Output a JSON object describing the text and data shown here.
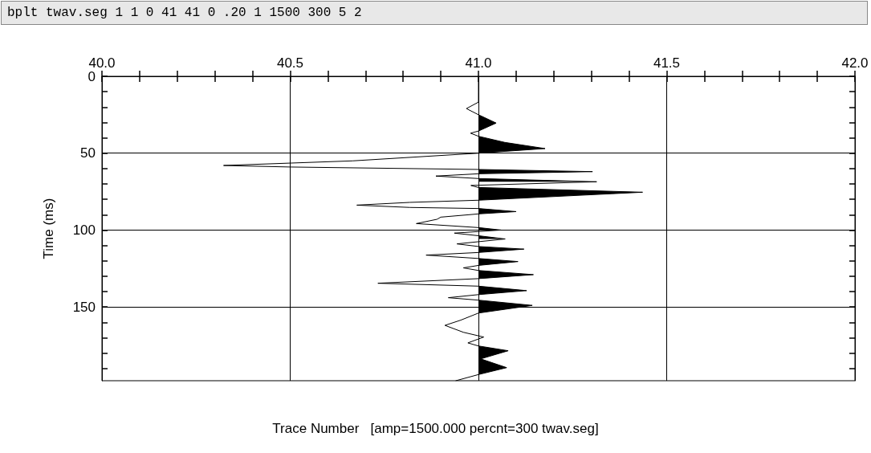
{
  "chart_data": {
    "type": "line",
    "title": "bplt twav.seg 1 1 0 41 41 0 .20 1 1500 300 5 2",
    "xlabel": "Trace Number   [amp=1500.000 percnt=300 twav.seg]",
    "ylabel": "Time (ms)",
    "xlim": [
      40.0,
      42.0
    ],
    "ylim": [
      198,
      0
    ],
    "xticks": [
      {
        "value": 40.0,
        "label": "40.0"
      },
      {
        "value": 40.1,
        "label": null
      },
      {
        "value": 40.2,
        "label": null
      },
      {
        "value": 40.3,
        "label": null
      },
      {
        "value": 40.4,
        "label": null
      },
      {
        "value": 40.5,
        "label": "40.5"
      },
      {
        "value": 40.6,
        "label": null
      },
      {
        "value": 40.7,
        "label": null
      },
      {
        "value": 40.8,
        "label": null
      },
      {
        "value": 40.9,
        "label": null
      },
      {
        "value": 41.0,
        "label": "41.0"
      },
      {
        "value": 41.1,
        "label": null
      },
      {
        "value": 41.2,
        "label": null
      },
      {
        "value": 41.3,
        "label": null
      },
      {
        "value": 41.4,
        "label": null
      },
      {
        "value": 41.5,
        "label": "41.5"
      },
      {
        "value": 41.6,
        "label": null
      },
      {
        "value": 41.7,
        "label": null
      },
      {
        "value": 41.8,
        "label": null
      },
      {
        "value": 41.9,
        "label": null
      },
      {
        "value": 42.0,
        "label": "42.0"
      }
    ],
    "yticks": [
      0,
      {
        "value": 10,
        "label": null
      },
      {
        "value": 20,
        "label": null
      },
      {
        "value": 30,
        "label": null
      },
      {
        "value": 40,
        "label": null
      },
      50,
      {
        "value": 60,
        "label": null
      },
      {
        "value": 70,
        "label": null
      },
      {
        "value": 80,
        "label": null
      },
      {
        "value": 90,
        "label": null
      },
      100,
      {
        "value": 110,
        "label": null
      },
      {
        "value": 120,
        "label": null
      },
      {
        "value": 130,
        "label": null
      },
      {
        "value": 140,
        "label": null
      },
      150,
      {
        "value": 160,
        "label": null
      },
      {
        "value": 170,
        "label": null
      },
      {
        "value": 180,
        "label": null
      },
      {
        "value": 190,
        "label": null
      }
    ],
    "grid": true,
    "marker": "none",
    "line_style": "solid",
    "orientation": "horizontal",
    "x": [
      0,
      10,
      16.8,
      21,
      25,
      30.4,
      35.6,
      37,
      39,
      43,
      47,
      50,
      55,
      58,
      59,
      60.6,
      62,
      63.4,
      64.9,
      66.5,
      68.6,
      71,
      72.3,
      75.4,
      80.6,
      82,
      83.8,
      85.3,
      86,
      88,
      89.5,
      91.6,
      93,
      95.8,
      98.4,
      100,
      102,
      103.7,
      105.8,
      109,
      110.7,
      112.4,
      114.6,
      116.3,
      118.5,
      120.5,
      123,
      124.6,
      126.3,
      129,
      131.6,
      134.6,
      136.5,
      139.4,
      142,
      144,
      145.6,
      149,
      154,
      158.6,
      162,
      166.5,
      169.6,
      173.4,
      175.4,
      178.5,
      183.8,
      189.5,
      194,
      198
    ],
    "series": [
      {
        "color": "#000000",
        "values": [
          41.0,
          41.0,
          41.0,
          40.968,
          41.0,
          41.047,
          41.0,
          40.979,
          41.0,
          41.07,
          41.177,
          41.0,
          40.666,
          40.323,
          40.5,
          41.0,
          41.303,
          41.0,
          40.887,
          41.0,
          41.314,
          40.98,
          41.0,
          41.436,
          41.0,
          40.818,
          40.677,
          40.818,
          41.0,
          41.1,
          41.0,
          40.9,
          40.89,
          40.835,
          41.0,
          41.06,
          40.936,
          41.0,
          41.071,
          40.943,
          41.0,
          41.121,
          41.0,
          40.861,
          41.0,
          41.105,
          41.0,
          40.96,
          41.0,
          41.146,
          41.0,
          40.733,
          41.0,
          41.128,
          41.0,
          40.92,
          41.0,
          41.143,
          41.0,
          40.953,
          40.911,
          40.96,
          41.014,
          40.972,
          41.0,
          41.079,
          41.006,
          41.075,
          41.0,
          40.94
        ]
      },
      {
        "type": "area",
        "color": "#000000",
        "values": [
          null,
          null,
          null,
          null,
          41.0,
          41.047,
          41.0,
          null,
          41.0,
          41.07,
          41.177,
          41.0,
          null,
          null,
          null,
          41.0,
          41.303,
          41.0,
          null,
          41.0,
          41.314,
          null,
          41.0,
          41.436,
          41.0,
          null,
          null,
          null,
          41.0,
          41.1,
          41.0,
          null,
          null,
          null,
          41.0,
          41.06,
          null,
          41.0,
          41.071,
          null,
          41.0,
          41.121,
          41.0,
          null,
          41.0,
          41.105,
          41.0,
          null,
          41.0,
          41.146,
          41.0,
          null,
          41.0,
          41.128,
          41.0,
          null,
          41.0,
          41.143,
          41.0,
          null,
          null,
          null,
          null,
          null,
          41.0,
          41.079,
          41.006,
          41.075,
          41.0,
          null
        ]
      }
    ]
  }
}
